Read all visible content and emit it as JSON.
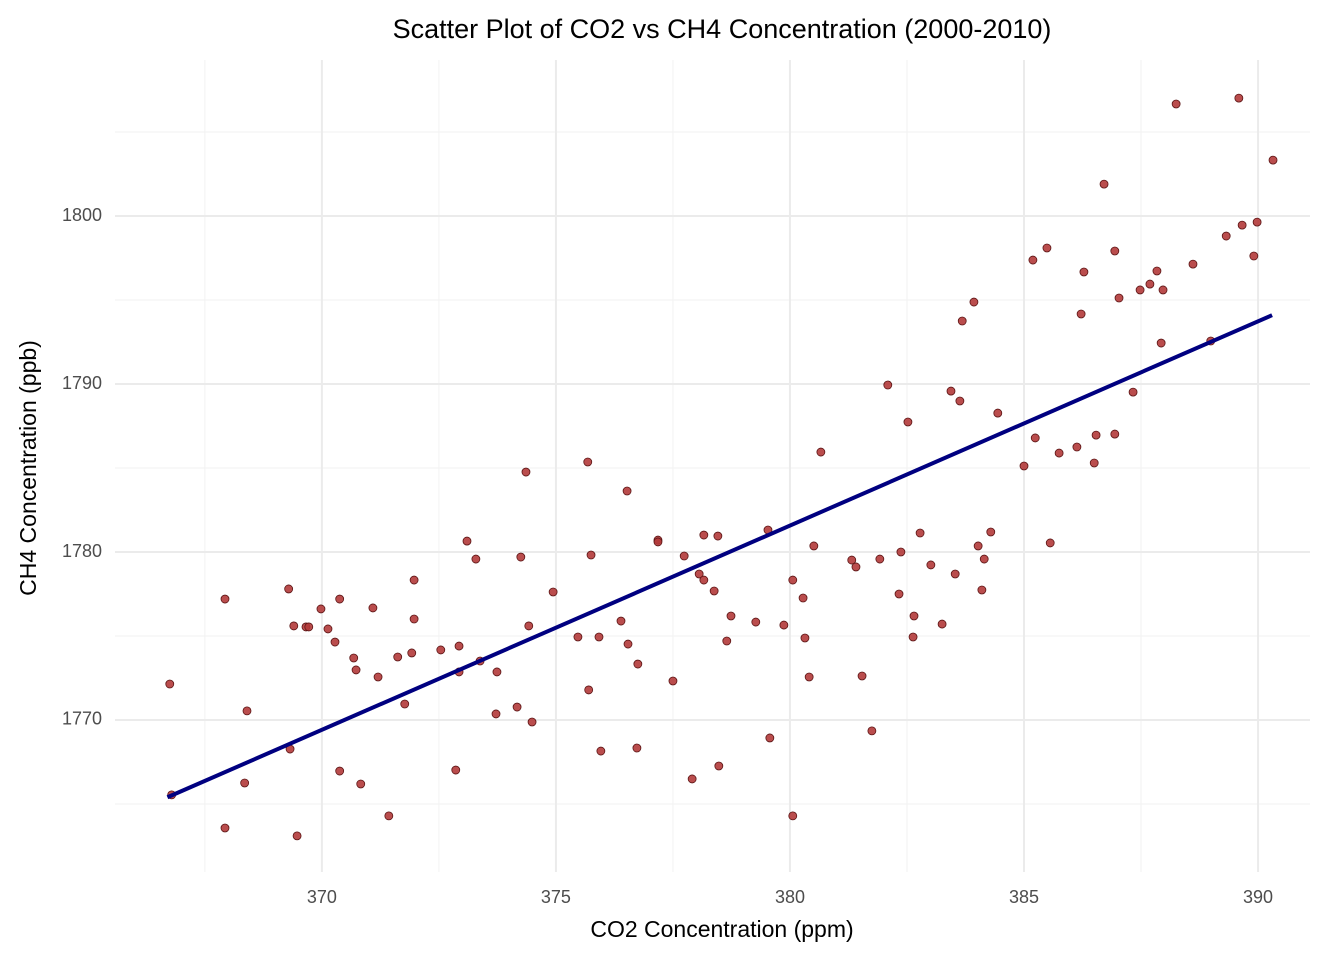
{
  "chart_data": {
    "type": "scatter",
    "title": "Scatter Plot of CO2 vs CH4 Concentration (2000-2010)",
    "x_label": "CO2 Concentration (ppm)",
    "y_label": "CH4 Concentration (ppb)",
    "x": [
      366.75,
      366.79,
      367.93,
      367.93,
      368.4,
      368.35,
      369.29,
      369.4,
      369.32,
      369.47,
      369.66,
      369.72,
      369.98,
      370.13,
      370.28,
      370.38,
      370.38,
      370.68,
      370.73,
      370.83,
      371.09,
      371.2,
      371.43,
      371.62,
      371.77,
      371.92,
      371.97,
      371.97,
      372.54,
      372.86,
      372.93,
      372.93,
      373.1,
      373.29,
      373.38,
      373.72,
      373.74,
      374.17,
      374.25,
      374.36,
      374.42,
      374.49,
      374.94,
      375.47,
      375.68,
      375.7,
      375.75,
      375.92,
      375.96,
      376.39,
      376.52,
      376.54,
      376.73,
      376.75,
      377.18,
      377.18,
      377.5,
      377.74,
      377.91,
      378.06,
      378.16,
      378.16,
      378.38,
      378.46,
      378.48,
      378.65,
      378.74,
      379.27,
      379.53,
      379.57,
      379.87,
      380.06,
      380.06,
      380.28,
      380.32,
      380.41,
      380.51,
      380.66,
      381.32,
      381.41,
      381.54,
      381.75,
      381.92,
      382.09,
      382.33,
      382.37,
      382.52,
      382.63,
      382.65,
      382.78,
      383.01,
      383.25,
      383.44,
      383.53,
      383.63,
      383.68,
      383.93,
      384.02,
      384.1,
      384.15,
      384.29,
      384.44,
      385.0,
      385.19,
      385.24,
      385.49,
      385.56,
      385.75,
      386.13,
      386.22,
      386.28,
      386.5,
      386.54,
      386.71,
      386.94,
      386.94,
      387.03,
      387.33,
      387.48,
      387.69,
      387.84,
      387.93,
      387.97,
      388.25,
      388.61,
      388.99,
      389.32,
      389.59,
      389.66,
      389.91,
      389.98,
      390.32
    ],
    "y": [
      1772.14,
      1765.54,
      1777.2,
      1763.57,
      1770.54,
      1766.25,
      1777.8,
      1775.6,
      1768.27,
      1763.1,
      1775.54,
      1775.54,
      1776.61,
      1775.42,
      1774.64,
      1777.2,
      1766.96,
      1773.69,
      1772.98,
      1766.19,
      1776.67,
      1772.56,
      1764.29,
      1773.75,
      1770.95,
      1773.99,
      1778.33,
      1776.01,
      1774.17,
      1767.02,
      1774.4,
      1772.86,
      1780.65,
      1779.58,
      1773.51,
      1770.36,
      1772.86,
      1770.77,
      1779.7,
      1784.76,
      1775.6,
      1769.88,
      1777.62,
      1774.94,
      1785.36,
      1771.79,
      1779.82,
      1774.94,
      1768.15,
      1775.89,
      1783.63,
      1774.52,
      1768.33,
      1773.33,
      1780.71,
      1780.6,
      1772.32,
      1779.76,
      1766.49,
      1778.69,
      1778.33,
      1781.01,
      1777.68,
      1780.95,
      1767.26,
      1774.7,
      1776.19,
      1775.83,
      1781.31,
      1768.93,
      1775.65,
      1778.33,
      1764.29,
      1777.26,
      1774.88,
      1772.56,
      1780.36,
      1785.95,
      1779.52,
      1779.11,
      1772.62,
      1769.35,
      1779.58,
      1789.94,
      1777.5,
      1780.0,
      1787.74,
      1774.94,
      1776.19,
      1781.13,
      1779.23,
      1775.71,
      1789.58,
      1778.69,
      1788.99,
      1793.75,
      1794.88,
      1780.36,
      1777.74,
      1779.58,
      1781.19,
      1788.27,
      1785.12,
      1797.38,
      1786.79,
      1798.1,
      1780.54,
      1785.89,
      1786.25,
      1794.17,
      1796.67,
      1785.3,
      1786.96,
      1801.9,
      1787.02,
      1797.92,
      1795.12,
      1789.52,
      1795.6,
      1795.95,
      1796.73,
      1792.44,
      1795.6,
      1806.67,
      1797.14,
      1792.56,
      1798.81,
      1807.02,
      1799.46,
      1797.62,
      1799.64,
      1803.33
    ],
    "color": "#b23a3a",
    "trend_line": {
      "x": [
        366.7,
        390.3
      ],
      "y": [
        1765.4,
        1794.1
      ],
      "color": "#000080"
    },
    "xlim": [
      365.58,
      391.11
    ],
    "ylim": [
      1760.95,
      1809.29
    ],
    "xticks": [
      370,
      375,
      380,
      385,
      390
    ],
    "yticks": [
      1770,
      1780,
      1790,
      1800
    ],
    "x_minor_grid": [
      367.5,
      372.5,
      377.5,
      382.5,
      387.5
    ],
    "y_minor_grid": [
      1765,
      1775,
      1785,
      1795,
      1805
    ],
    "grid": true
  }
}
